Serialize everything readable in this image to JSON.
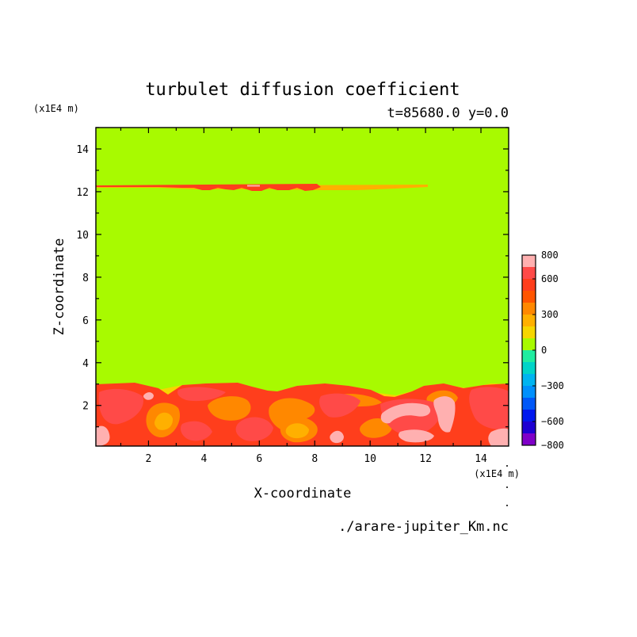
{
  "chart_data": {
    "type": "heatmap",
    "title": "turbulet diffusion coefficient",
    "subtitle": "t=85680.0 y=0.0",
    "xlabel": "X-coordinate",
    "ylabel": "Z-coordinate",
    "x_unit": "(x1E4 m)",
    "y_unit": "(x1E4 m)",
    "xlim": [
      0.1,
      15.0
    ],
    "ylim": [
      0.1,
      15.0
    ],
    "x_ticks": [
      2,
      4,
      6,
      8,
      10,
      12,
      14
    ],
    "y_ticks": [
      2,
      4,
      6,
      8,
      10,
      12,
      14
    ],
    "x_tick_labels": [
      "2",
      "4",
      "6",
      "8",
      "10",
      "12",
      "14"
    ],
    "y_tick_labels": [
      "2",
      "4",
      "6",
      "8",
      "10",
      "12",
      "14"
    ],
    "background_level": 0,
    "colorbar": {
      "levels": [
        -800,
        -700,
        -600,
        -500,
        -400,
        -300,
        -200,
        -100,
        0,
        100,
        200,
        300,
        400,
        500,
        600,
        700,
        800
      ],
      "colors": [
        "#7f00c8",
        "#1e00d2",
        "#0018ee",
        "#0058f8",
        "#0090fc",
        "#00b4f0",
        "#00d4c8",
        "#20eca0",
        "#a8fa00",
        "#f6d600",
        "#ffb000",
        "#ff8800",
        "#ff5500",
        "#ff3e1c",
        "#ff4a48",
        "#ffb0b0"
      ],
      "labeled_ticks": [
        800,
        600,
        300,
        0,
        -300,
        -600,
        -800
      ],
      "tick_labels": [
        "800",
        "600",
        "300",
        "0",
        "−300",
        "−600",
        "−800"
      ]
    },
    "regions": [
      {
        "name": "upper-layer-band",
        "level": 700,
        "x": [
          0.1,
          12.0
        ],
        "z": [
          12.1,
          12.3
        ]
      },
      {
        "name": "lower-turbulent-layer",
        "level": 700,
        "x": [
          0.1,
          15.0
        ],
        "z": [
          0.1,
          3.0
        ]
      }
    ],
    "source_file": "./arare-jupiter_Km.nc"
  },
  "colors": {
    "background_field": "#a8fa00",
    "red_700": "#ff3e1c",
    "red_650": "#ff4a48",
    "pink_800": "#ffb0b0",
    "orange_400": "#ff8800",
    "yellow_300": "#ffb000",
    "gold_100": "#f6d600"
  }
}
